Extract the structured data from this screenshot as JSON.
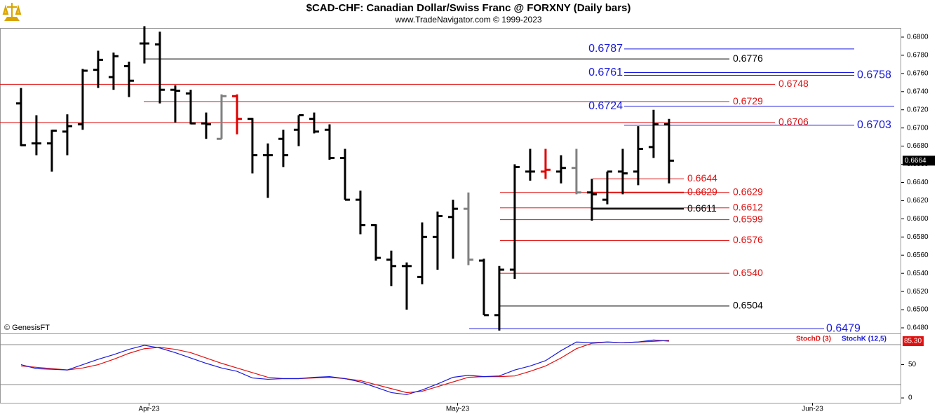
{
  "chart_data": [
    {
      "type": "ohlc",
      "title": "$CAD-CHF:  Canadian Dollar/Swiss Franc @ FORXNY  (Daily bars)",
      "subtitle": "www.TradeNavigator.com © 1999-2023",
      "annotation": "© GenesisFT",
      "x": [
        0,
        1,
        2,
        3,
        4,
        5,
        6,
        7,
        8,
        9,
        10,
        11,
        12,
        13,
        14,
        15,
        16,
        17,
        18,
        19,
        20,
        21,
        22,
        23,
        24,
        25,
        26,
        27,
        28,
        29,
        30,
        31,
        32,
        33,
        34,
        35,
        36,
        37,
        38,
        39,
        40,
        41,
        42
      ],
      "open": [
        0.6727,
        0.6683,
        0.6683,
        0.6696,
        0.6704,
        0.6764,
        0.6756,
        0.6768,
        0.6793,
        0.6792,
        0.6742,
        0.6738,
        0.6705,
        0.6688,
        0.6735,
        0.671,
        0.667,
        0.6688,
        0.6698,
        0.671,
        0.6698,
        0.6667,
        0.6621,
        0.6593,
        0.6555,
        0.6548,
        0.6536,
        0.658,
        0.6602,
        0.6611,
        0.6554,
        0.6494,
        0.6544,
        0.6652,
        0.6652,
        0.6652,
        0.6656,
        0.6629,
        0.6621,
        0.6652,
        0.6652,
        0.6679,
        0.6704
      ],
      "high": [
        0.6744,
        0.6714,
        0.6698,
        0.6715,
        0.6765,
        0.6785,
        0.6783,
        0.6773,
        0.6812,
        0.6806,
        0.6747,
        0.6742,
        0.6717,
        0.6737,
        0.6737,
        0.6711,
        0.6683,
        0.6698,
        0.6714,
        0.6717,
        0.6704,
        0.6677,
        0.6631,
        0.6594,
        0.6565,
        0.6552,
        0.6596,
        0.6608,
        0.6621,
        0.6629,
        0.6556,
        0.6548,
        0.666,
        0.6677,
        0.6677,
        0.667,
        0.6677,
        0.6644,
        0.6652,
        0.6677,
        0.6702,
        0.672,
        0.671
      ],
      "low": [
        0.668,
        0.667,
        0.6652,
        0.667,
        0.6698,
        0.6744,
        0.6742,
        0.6734,
        0.6771,
        0.6727,
        0.6706,
        0.6704,
        0.6688,
        0.6688,
        0.6693,
        0.665,
        0.6623,
        0.6657,
        0.668,
        0.6694,
        0.6665,
        0.6621,
        0.6583,
        0.6554,
        0.6526,
        0.65,
        0.6528,
        0.6544,
        0.6556,
        0.6549,
        0.6494,
        0.6477,
        0.6534,
        0.6642,
        0.6644,
        0.6639,
        0.6627,
        0.6598,
        0.6616,
        0.6627,
        0.6637,
        0.6667,
        0.6639
      ],
      "close": [
        0.6681,
        0.6683,
        0.6697,
        0.6702,
        0.6763,
        0.6775,
        0.6779,
        0.6752,
        0.6793,
        0.6742,
        0.6741,
        0.6705,
        0.6704,
        0.6735,
        0.671,
        0.667,
        0.667,
        0.667,
        0.6714,
        0.6696,
        0.6667,
        0.6621,
        0.6593,
        0.6557,
        0.6548,
        0.6548,
        0.658,
        0.6603,
        0.6611,
        0.6555,
        0.6494,
        0.6544,
        0.6657,
        0.6652,
        0.6654,
        0.6656,
        0.6629,
        0.6627,
        0.6652,
        0.665,
        0.6677,
        0.6704,
        0.6664
      ],
      "bar_colors": [
        "#000",
        "#000",
        "#000",
        "#000",
        "#000",
        "#000",
        "#000",
        "#000",
        "#000",
        "#000",
        "#000",
        "#000",
        "#000",
        "#808080",
        "#e00000",
        "#000",
        "#000",
        "#000",
        "#000",
        "#000",
        "#000",
        "#000",
        "#000",
        "#000",
        "#000",
        "#000",
        "#000",
        "#000",
        "#000",
        "#808080",
        "#000",
        "#000",
        "#000",
        "#000",
        "#e00000",
        "#000",
        "#808080",
        "#000",
        "#000",
        "#000",
        "#000",
        "#000",
        "#000"
      ],
      "last_price": 0.6664,
      "levels": [
        {
          "value": 0.6787,
          "label": "0.6787",
          "color": "#1a1adc"
        },
        {
          "value": 0.6776,
          "label": "0.6776",
          "color": "#000000"
        },
        {
          "value": 0.6761,
          "label": "0.6761",
          "color": "#1a1adc"
        },
        {
          "value": 0.6758,
          "label": "0.6758",
          "color": "#1a1adc"
        },
        {
          "value": 0.6748,
          "label": "0.6748",
          "color": "#e01010"
        },
        {
          "value": 0.6729,
          "label": "0.6729",
          "color": "#e01010"
        },
        {
          "value": 0.6724,
          "label": "0.6724",
          "color": "#1a1adc"
        },
        {
          "value": 0.6706,
          "label": "0.6706",
          "color": "#e01010"
        },
        {
          "value": 0.6703,
          "label": "0.6703",
          "color": "#1a1adc"
        },
        {
          "value": 0.6644,
          "label": "0.6644",
          "color": "#e01010"
        },
        {
          "value": 0.6629,
          "label": "0.6629",
          "color": "#e01010"
        },
        {
          "value": 0.6629,
          "label": "0.6629",
          "color": "#e01010"
        },
        {
          "value": 0.6612,
          "label": "0.6612",
          "color": "#e01010"
        },
        {
          "value": 0.6611,
          "label": "0.6611",
          "color": "#000000"
        },
        {
          "value": 0.6599,
          "label": "0.6599",
          "color": "#e01010"
        },
        {
          "value": 0.6576,
          "label": "0.6576",
          "color": "#e01010"
        },
        {
          "value": 0.654,
          "label": "0.6540",
          "color": "#e01010"
        },
        {
          "value": 0.6504,
          "label": "0.6504",
          "color": "#000000"
        },
        {
          "value": 0.6479,
          "label": "0.6479",
          "color": "#1a1adc"
        }
      ],
      "xlim": [
        -1.36,
        57.05
      ],
      "ylim": [
        0.64746,
        0.681
      ],
      "yticks": [
        {
          "value": 0.648,
          "label": "0.6480"
        },
        {
          "value": 0.65,
          "label": "0.6500"
        },
        {
          "value": 0.652,
          "label": "0.6520"
        },
        {
          "value": 0.654,
          "label": "0.6540"
        },
        {
          "value": 0.656,
          "label": "0.6560"
        },
        {
          "value": 0.658,
          "label": "0.6580"
        },
        {
          "value": 0.66,
          "label": "0.6600"
        },
        {
          "value": 0.662,
          "label": "0.6620"
        },
        {
          "value": 0.664,
          "label": "0.6640"
        },
        {
          "value": 0.666,
          "label": "0.6660"
        },
        {
          "value": 0.668,
          "label": "0.6680"
        },
        {
          "value": 0.67,
          "label": "0.6700"
        },
        {
          "value": 0.672,
          "label": "0.6720"
        },
        {
          "value": 0.674,
          "label": "0.6740"
        },
        {
          "value": 0.676,
          "label": "0.6760"
        },
        {
          "value": 0.678,
          "label": "0.6780"
        },
        {
          "value": 0.68,
          "label": "0.6800"
        }
      ]
    },
    {
      "type": "line",
      "x": [
        0,
        1,
        2,
        3,
        4,
        5,
        6,
        7,
        8,
        9,
        10,
        11,
        12,
        13,
        14,
        15,
        16,
        17,
        18,
        19,
        20,
        21,
        22,
        23,
        24,
        25,
        26,
        27,
        28,
        29,
        30,
        31,
        32,
        33,
        34,
        35,
        36,
        37,
        38,
        39,
        40,
        41,
        42
      ],
      "series": [
        {
          "name": "StochD (3)",
          "color": "#e01010",
          "values": [
            48,
            46,
            44,
            42,
            45,
            50,
            58,
            67,
            74,
            76,
            73,
            68,
            60,
            52,
            45,
            38,
            31,
            29,
            29,
            30,
            31,
            29,
            26,
            20,
            14,
            8,
            10,
            17,
            24,
            31,
            32,
            32,
            33,
            40,
            48,
            60,
            74,
            82,
            84,
            83,
            84,
            85,
            86.5
          ]
        },
        {
          "name": "StochK (12,5)",
          "color": "#1a1adc",
          "values": [
            50,
            44,
            43,
            42,
            50,
            58,
            65,
            73,
            79,
            75,
            68,
            60,
            52,
            45,
            40,
            30,
            28,
            29,
            29,
            31,
            32,
            29,
            24,
            16,
            8,
            5,
            12,
            21,
            31,
            34,
            32,
            33,
            42,
            48,
            56,
            71,
            84,
            83,
            84,
            83,
            84,
            87,
            85.3
          ]
        }
      ],
      "last_value": {
        "value": 85.3,
        "label": "85.30"
      },
      "guide_levels": [
        20,
        80
      ],
      "xlim": [
        -1.36,
        57.05
      ],
      "ylim": [
        -7.3,
        95.8
      ],
      "yticks": [
        0,
        50
      ],
      "xticks": [
        {
          "value": 8.3,
          "label": "Apr-23"
        },
        {
          "value": 28.3,
          "label": "May-23"
        },
        {
          "value": 51.3,
          "label": "Jun-23"
        }
      ]
    }
  ]
}
